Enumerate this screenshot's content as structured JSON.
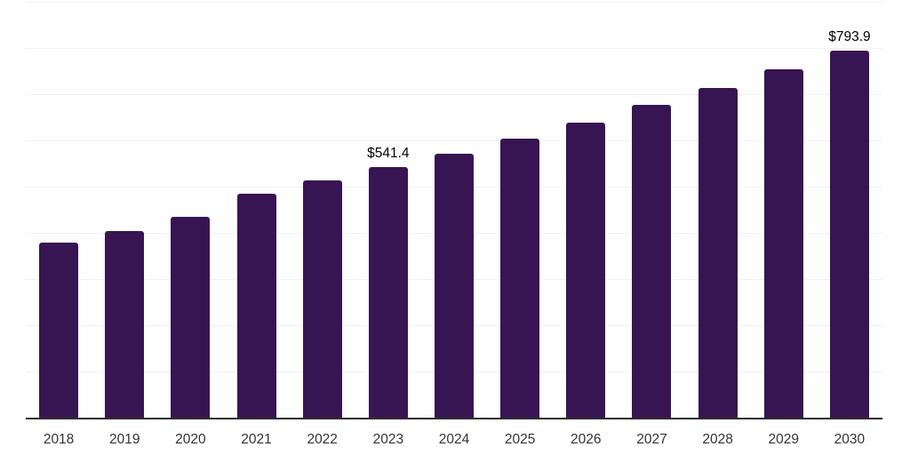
{
  "chart_data": {
    "type": "bar",
    "title": "",
    "xlabel": "",
    "ylabel": "",
    "categories": [
      "2018",
      "2019",
      "2020",
      "2021",
      "2022",
      "2023",
      "2024",
      "2025",
      "2026",
      "2027",
      "2028",
      "2029",
      "2030"
    ],
    "values": [
      379,
      403,
      435,
      485,
      513,
      541.4,
      571,
      604,
      639,
      676,
      714,
      753,
      793.9
    ],
    "value_labels": [
      "",
      "",
      "",
      "",
      "",
      "$541.4",
      "",
      "",
      "",
      "",
      "",
      "",
      "$793.9"
    ],
    "ylim": [
      0,
      900
    ],
    "grid_step": 100,
    "grid": true,
    "legend_position": "none",
    "colors": {
      "bar": "#371552",
      "gridline": "#f0f1f3",
      "axis_line": "#2e2e2e",
      "tick_label": "#333333",
      "value_label": "#000000",
      "background": "#ffffff"
    }
  }
}
